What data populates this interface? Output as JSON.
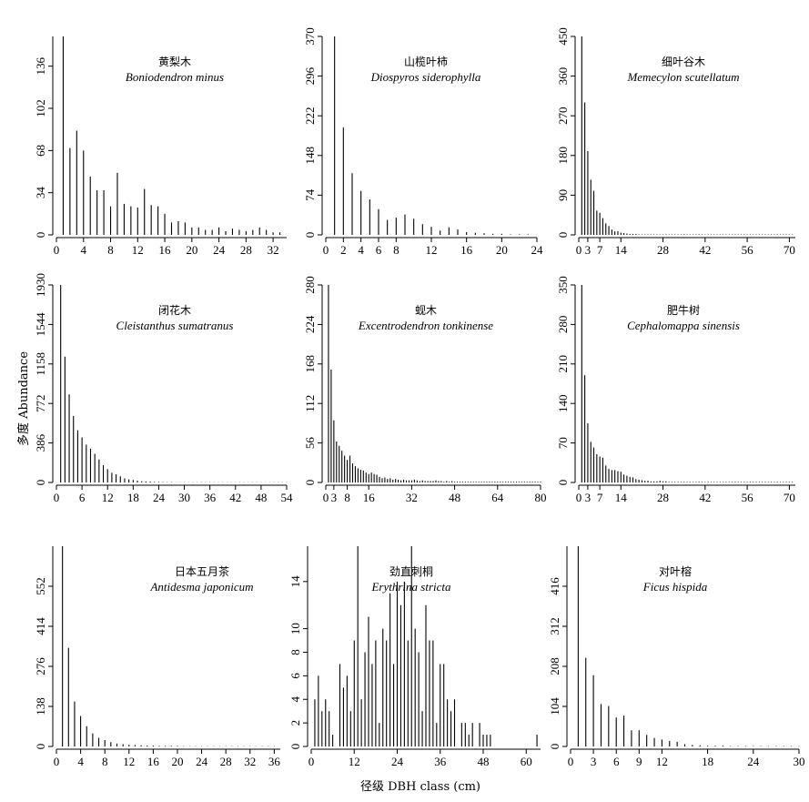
{
  "labels": {
    "ylabel": "多度 Abundance",
    "xlabel": "径级 DBH class (cm)"
  },
  "chart_data": [
    {
      "type": "bar",
      "title_cn": "黄梨木",
      "title_species": "Boniodendron minus",
      "xlim": [
        0,
        34
      ],
      "ylim": [
        0,
        160
      ],
      "xticks": [
        0,
        4,
        8,
        12,
        16,
        20,
        24,
        28,
        32
      ],
      "yticks": [
        0,
        34,
        68,
        102,
        136
      ],
      "x": [
        1,
        2,
        3,
        4,
        5,
        6,
        7,
        8,
        9,
        10,
        11,
        12,
        13,
        14,
        15,
        16,
        17,
        18,
        19,
        20,
        21,
        22,
        23,
        24,
        25,
        26,
        27,
        28,
        29,
        30,
        31,
        32,
        33
      ],
      "values": [
        160,
        70,
        84,
        68,
        47,
        36,
        36,
        23,
        50,
        25,
        23,
        22,
        37,
        24,
        23,
        17,
        10,
        11,
        10,
        6,
        6,
        4,
        4,
        6,
        3,
        5,
        4,
        3,
        4,
        6,
        4,
        2,
        2
      ]
    },
    {
      "type": "bar",
      "title_cn": "山榄叶柿",
      "title_species": "Diospyros siderophylla",
      "xlim": [
        0,
        24
      ],
      "ylim": [
        0,
        370
      ],
      "xticks": [
        0,
        2,
        4,
        6,
        8,
        12,
        16,
        20,
        24
      ],
      "yticks": [
        0,
        74,
        148,
        222,
        296,
        370
      ],
      "x": [
        1,
        2,
        3,
        4,
        5,
        6,
        7,
        8,
        9,
        10,
        11,
        12,
        13,
        14,
        15,
        16,
        17,
        18,
        19,
        20,
        21,
        22,
        23
      ],
      "values": [
        370,
        200,
        115,
        82,
        66,
        48,
        28,
        32,
        38,
        30,
        20,
        15,
        8,
        14,
        10,
        5,
        4,
        3,
        2,
        2,
        1,
        1,
        1
      ]
    },
    {
      "type": "bar",
      "title_cn": "细叶谷木",
      "title_species": "Memecylon scutellatum",
      "xlim": [
        0,
        72
      ],
      "ylim": [
        0,
        450
      ],
      "xticks": [
        0,
        3,
        7,
        14,
        28,
        42,
        56,
        70
      ],
      "yticks": [
        0,
        90,
        180,
        270,
        360,
        450
      ],
      "x": [
        1,
        2,
        3,
        4,
        5,
        6,
        7,
        8,
        9,
        10,
        11,
        12,
        13,
        14,
        15,
        16,
        17,
        18,
        19,
        20,
        21,
        22,
        23,
        24,
        25,
        26,
        27,
        28,
        29,
        30,
        31,
        32,
        33,
        34,
        35,
        36,
        37,
        38,
        39,
        40,
        41,
        42,
        43,
        44,
        45,
        46,
        47,
        48,
        49,
        50,
        51,
        52,
        53,
        54,
        55,
        56,
        57,
        58,
        59,
        60,
        61,
        62,
        63,
        64,
        65,
        66,
        67,
        68,
        69,
        70,
        71
      ],
      "values": [
        450,
        300,
        190,
        125,
        100,
        55,
        50,
        38,
        26,
        20,
        12,
        8,
        8,
        5,
        4,
        3,
        2,
        2,
        2,
        1,
        1,
        1,
        1,
        1,
        1,
        1,
        1,
        1,
        1,
        1,
        1,
        1,
        1,
        1,
        1,
        1,
        1,
        1,
        1,
        1,
        1,
        1,
        1,
        1,
        1,
        1,
        1,
        1,
        1,
        1,
        1,
        1,
        1,
        1,
        1,
        1,
        1,
        1,
        1,
        1,
        1,
        1,
        1,
        1,
        1,
        1,
        1,
        1,
        1,
        1,
        1
      ]
    },
    {
      "type": "bar",
      "title_cn": "闭花木",
      "title_species": "Cleistanthus sumatranus",
      "xlim": [
        0,
        54
      ],
      "ylim": [
        0,
        1930
      ],
      "xticks": [
        0,
        6,
        12,
        18,
        24,
        30,
        36,
        42,
        48,
        54
      ],
      "yticks": [
        0,
        386,
        772,
        1158,
        1544,
        1930
      ],
      "x": [
        1,
        2,
        3,
        4,
        5,
        6,
        7,
        8,
        9,
        10,
        11,
        12,
        13,
        14,
        15,
        16,
        17,
        18,
        19,
        20,
        21,
        22,
        23,
        24,
        25,
        26,
        27,
        28,
        29,
        30,
        31,
        32,
        33,
        34,
        35,
        36,
        37,
        38,
        39,
        40,
        41,
        42,
        43,
        44,
        45,
        46,
        47,
        48,
        49,
        50,
        51,
        52,
        53,
        54
      ],
      "values": [
        1930,
        1230,
        860,
        650,
        510,
        440,
        370,
        330,
        280,
        225,
        170,
        130,
        95,
        80,
        60,
        40,
        30,
        25,
        18,
        12,
        10,
        8,
        6,
        5,
        4,
        3,
        3,
        2,
        2,
        2,
        2,
        2,
        2,
        2,
        2,
        2,
        2,
        2,
        2,
        2,
        2,
        2,
        2,
        2,
        2,
        2,
        2,
        2,
        2,
        2,
        2,
        2,
        2,
        2
      ]
    },
    {
      "type": "bar",
      "title_cn": "蚬木",
      "title_species": "Excentrodendron tonkinense",
      "xlim": [
        0,
        80
      ],
      "ylim": [
        0,
        280
      ],
      "xticks": [
        0,
        3,
        8,
        16,
        32,
        48,
        64,
        80
      ],
      "yticks": [
        0,
        56,
        112,
        168,
        224,
        280
      ],
      "x": [
        1,
        2,
        3,
        4,
        5,
        6,
        7,
        8,
        9,
        10,
        11,
        12,
        13,
        14,
        15,
        16,
        17,
        18,
        19,
        20,
        21,
        22,
        23,
        24,
        25,
        26,
        27,
        28,
        29,
        30,
        31,
        32,
        33,
        34,
        35,
        36,
        37,
        38,
        39,
        40,
        41,
        42,
        43,
        44,
        45,
        46,
        47,
        48,
        49,
        50,
        51,
        52,
        53,
        54,
        55,
        56,
        57,
        58,
        59,
        60,
        61,
        62,
        63,
        64,
        65,
        66,
        67,
        68,
        69,
        70,
        71,
        72,
        73,
        74,
        75,
        76,
        77,
        78,
        79,
        80
      ],
      "values": [
        280,
        160,
        88,
        58,
        52,
        45,
        38,
        32,
        38,
        27,
        23,
        20,
        18,
        17,
        14,
        12,
        14,
        12,
        11,
        8,
        6,
        7,
        5,
        6,
        4,
        5,
        4,
        3,
        4,
        3,
        3,
        3,
        4,
        3,
        2,
        3,
        2,
        2,
        2,
        2,
        3,
        2,
        2,
        1,
        2,
        1,
        2,
        1,
        1,
        1,
        1,
        1,
        1,
        1,
        1,
        1,
        1,
        1,
        1,
        1,
        1,
        1,
        1,
        1,
        1,
        1,
        1,
        1,
        1,
        1,
        1,
        1,
        1,
        1,
        1,
        1,
        1,
        1,
        1,
        1
      ]
    },
    {
      "type": "bar",
      "title_cn": "肥牛树",
      "title_species": "Cephalomappa sinensis",
      "xlim": [
        0,
        72
      ],
      "ylim": [
        0,
        350
      ],
      "xticks": [
        0,
        3,
        7,
        14,
        28,
        42,
        56,
        70
      ],
      "yticks": [
        0,
        70,
        140,
        210,
        280,
        350
      ],
      "x": [
        1,
        2,
        3,
        4,
        5,
        6,
        7,
        8,
        9,
        10,
        11,
        12,
        13,
        14,
        15,
        16,
        17,
        18,
        19,
        20,
        21,
        22,
        23,
        24,
        25,
        26,
        27,
        28,
        29,
        30,
        31,
        32,
        33,
        34,
        35,
        36,
        37,
        38,
        39,
        40,
        41,
        42,
        43,
        44,
        45,
        46,
        47,
        48,
        49,
        50,
        51,
        52,
        53,
        54,
        55,
        56,
        57,
        58,
        59,
        60,
        61,
        62,
        63,
        64,
        65,
        66,
        67,
        68,
        69,
        70,
        71
      ],
      "values": [
        350,
        190,
        105,
        72,
        62,
        50,
        46,
        44,
        30,
        24,
        22,
        22,
        20,
        19,
        14,
        12,
        10,
        9,
        6,
        5,
        4,
        3,
        3,
        2,
        2,
        2,
        3,
        2,
        2,
        1,
        1,
        1,
        1,
        1,
        1,
        1,
        1,
        1,
        1,
        1,
        1,
        1,
        1,
        1,
        1,
        1,
        1,
        1,
        1,
        1,
        1,
        1,
        1,
        1,
        1,
        1,
        1,
        1,
        1,
        1,
        1,
        1,
        1,
        1,
        1,
        1,
        1,
        1,
        1,
        1,
        1
      ]
    },
    {
      "type": "bar",
      "title_cn": "日本五月茶",
      "title_species": "Antidesma japonicum",
      "xlim": [
        0,
        37
      ],
      "ylim": [
        0,
        690
      ],
      "xticks": [
        0,
        4,
        8,
        12,
        16,
        20,
        24,
        28,
        32,
        36
      ],
      "yticks": [
        0,
        138,
        276,
        414,
        552
      ],
      "x": [
        1,
        2,
        3,
        4,
        5,
        6,
        7,
        8,
        9,
        10,
        11,
        12,
        13,
        14,
        15,
        16,
        17,
        18,
        19,
        20,
        21,
        22,
        23,
        24,
        25,
        26,
        27,
        28,
        29,
        30,
        31,
        32,
        33,
        34,
        35,
        36
      ],
      "values": [
        690,
        340,
        155,
        105,
        70,
        45,
        30,
        22,
        15,
        10,
        8,
        6,
        5,
        4,
        3,
        3,
        2,
        2,
        2,
        2,
        1,
        1,
        1,
        1,
        1,
        1,
        1,
        1,
        1,
        1,
        1,
        1,
        1,
        1,
        1,
        1
      ]
    },
    {
      "type": "bar",
      "title_cn": "劲直刺桐",
      "title_species": "Erythrina stricta",
      "xlim": [
        0,
        64
      ],
      "ylim": [
        0,
        17
      ],
      "xticks": [
        0,
        12,
        24,
        36,
        48,
        60
      ],
      "yticks": [
        0,
        2,
        4,
        6,
        8,
        10,
        14
      ],
      "x": [
        1,
        2,
        3,
        4,
        5,
        6,
        7,
        8,
        9,
        10,
        11,
        12,
        13,
        14,
        15,
        16,
        17,
        18,
        19,
        20,
        21,
        22,
        23,
        24,
        25,
        26,
        27,
        28,
        29,
        30,
        31,
        32,
        33,
        34,
        35,
        36,
        37,
        38,
        39,
        40,
        41,
        42,
        43,
        44,
        45,
        46,
        47,
        48,
        49,
        50,
        51,
        52,
        53,
        54,
        55,
        56,
        57,
        58,
        59,
        60,
        61,
        62,
        63
      ],
      "values": [
        4,
        6,
        3,
        4,
        3,
        1,
        0,
        7,
        5,
        6,
        3,
        9,
        17,
        4,
        8,
        11,
        7,
        9,
        2,
        10,
        9,
        13,
        7,
        14,
        12,
        14,
        9,
        17,
        10,
        8,
        3,
        12,
        9,
        9,
        2,
        7,
        7,
        4,
        3,
        4,
        0,
        2,
        2,
        1,
        2,
        0,
        2,
        1,
        1,
        1,
        0,
        0,
        0,
        0,
        0,
        0,
        0,
        0,
        0,
        0,
        0,
        0,
        1
      ]
    },
    {
      "type": "bar",
      "title_cn": "对叶榕",
      "title_species": "Ficus hispida",
      "xlim": [
        0,
        30
      ],
      "ylim": [
        0,
        520
      ],
      "xticks": [
        0,
        3,
        6,
        9,
        12,
        18,
        24,
        30
      ],
      "yticks": [
        0,
        104,
        208,
        312,
        416
      ],
      "x": [
        1,
        2,
        3,
        4,
        5,
        6,
        7,
        8,
        9,
        10,
        11,
        12,
        13,
        14,
        15,
        16,
        17,
        18,
        19,
        20,
        21,
        22,
        23,
        24,
        25,
        26,
        27,
        28,
        29,
        30
      ],
      "values": [
        520,
        230,
        185,
        110,
        105,
        75,
        80,
        42,
        42,
        30,
        22,
        18,
        14,
        12,
        6,
        4,
        3,
        2,
        2,
        2,
        1,
        1,
        1,
        1,
        1,
        1,
        1,
        1,
        1,
        1
      ]
    }
  ]
}
